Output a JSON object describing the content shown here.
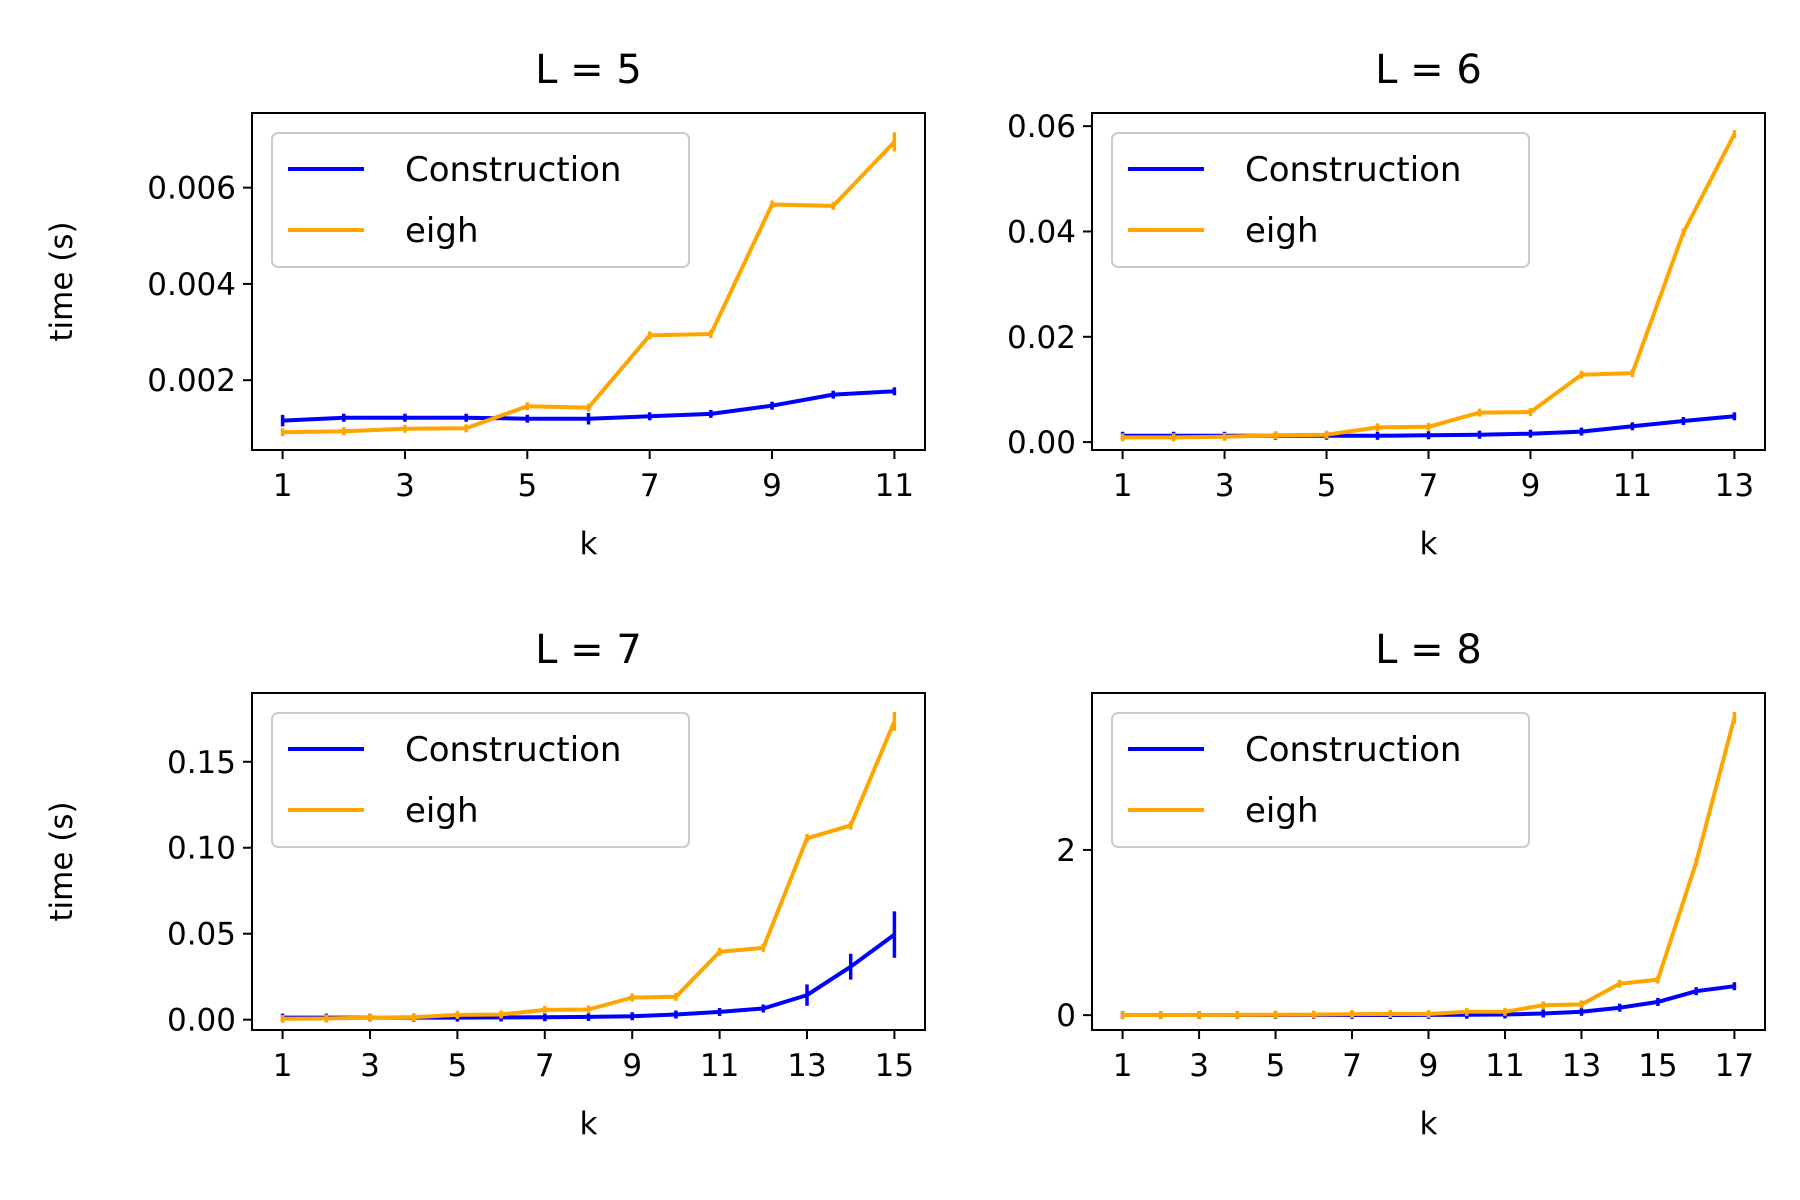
{
  "chart_data": [
    {
      "type": "line",
      "title": "L = 5",
      "xlabel": "k",
      "ylabel": "time (s)",
      "xlim": [
        0.5,
        11.5
      ],
      "ylim": [
        0.00055,
        0.00755
      ],
      "xticks": [
        1,
        3,
        5,
        7,
        9,
        11
      ],
      "yticks": [
        0.002,
        0.004,
        0.006
      ],
      "ytick_labels": [
        "0.002",
        "0.004",
        "0.006"
      ],
      "legend_position": "upper-left",
      "x": [
        1,
        2,
        3,
        4,
        5,
        6,
        7,
        8,
        9,
        10,
        11
      ],
      "series": [
        {
          "name": "Construction",
          "color": "#0000ff",
          "values": [
            0.00116,
            0.00122,
            0.00122,
            0.00122,
            0.0012,
            0.0012,
            0.00125,
            0.0013,
            0.00147,
            0.0017,
            0.00177
          ],
          "errors": [
            0.00012,
            8e-05,
            8e-05,
            8e-05,
            5e-05,
            0.00012,
            3e-05,
            6e-05,
            3e-05,
            4e-05,
            3e-05
          ]
        },
        {
          "name": "eigh",
          "color": "#ffa500",
          "values": [
            0.00092,
            0.00094,
            0.00099,
            0.001,
            0.00146,
            0.00143,
            0.00293,
            0.00296,
            0.00565,
            0.00562,
            0.00695
          ],
          "errors": [
            2e-05,
            2e-05,
            2e-05,
            2e-05,
            2e-05,
            2e-05,
            5e-05,
            3e-05,
            5e-05,
            5e-05,
            0.0002
          ]
        }
      ]
    },
    {
      "type": "line",
      "title": "L = 6",
      "xlabel": "k",
      "ylabel": "",
      "xlim": [
        0.4,
        13.6
      ],
      "ylim": [
        -0.0015,
        0.0625
      ],
      "xticks": [
        1,
        3,
        5,
        7,
        9,
        11,
        13
      ],
      "yticks": [
        0.0,
        0.02,
        0.04,
        0.06
      ],
      "ytick_labels": [
        "0.00",
        "0.02",
        "0.04",
        "0.06"
      ],
      "legend_position": "upper-left",
      "x": [
        1,
        2,
        3,
        4,
        5,
        6,
        7,
        8,
        9,
        10,
        11,
        12,
        13
      ],
      "series": [
        {
          "name": "Construction",
          "color": "#0000ff",
          "values": [
            0.0012,
            0.0012,
            0.0012,
            0.0012,
            0.0012,
            0.0012,
            0.0013,
            0.0014,
            0.0016,
            0.002,
            0.003,
            0.004,
            0.0049
          ],
          "errors": [
            0.0001,
            0.0001,
            0.0001,
            0.0001,
            0.0001,
            0.0001,
            0.0001,
            0.0001,
            0.0001,
            0.0001,
            0.0001,
            0.0001,
            0.0001
          ]
        },
        {
          "name": "eigh",
          "color": "#ffa500",
          "values": [
            0.0009,
            0.0009,
            0.001,
            0.0013,
            0.0014,
            0.0028,
            0.0029,
            0.0056,
            0.0057,
            0.0128,
            0.0131,
            0.0398,
            0.0585
          ],
          "errors": [
            0.0001,
            0.0001,
            0.0001,
            0.0001,
            0.0001,
            0.0001,
            0.0001,
            0.0001,
            0.0001,
            0.0002,
            0.0002,
            0.0006,
            0.0006
          ]
        }
      ]
    },
    {
      "type": "line",
      "title": "L = 7",
      "xlabel": "k",
      "ylabel": "time (s)",
      "xlim": [
        0.3,
        15.7
      ],
      "ylim": [
        -0.006,
        0.19
      ],
      "xticks": [
        1,
        3,
        5,
        7,
        9,
        11,
        13,
        15
      ],
      "yticks": [
        0.0,
        0.05,
        0.1,
        0.15
      ],
      "ytick_labels": [
        "0.00",
        "0.05",
        "0.10",
        "0.15"
      ],
      "legend_position": "upper-left",
      "x": [
        1,
        2,
        3,
        4,
        5,
        6,
        7,
        8,
        9,
        10,
        11,
        12,
        13,
        14,
        15
      ],
      "series": [
        {
          "name": "Construction",
          "color": "#0000ff",
          "values": [
            0.0012,
            0.0012,
            0.0012,
            0.0012,
            0.0012,
            0.0013,
            0.0014,
            0.0016,
            0.002,
            0.003,
            0.0045,
            0.0065,
            0.0143,
            0.0308,
            0.0495
          ],
          "errors": [
            0.0002,
            0.0002,
            0.0002,
            0.0002,
            0.0002,
            0.0002,
            0.0002,
            0.0002,
            0.0002,
            0.0003,
            0.0004,
            0.0005,
            0.0062,
            0.0075,
            0.0135
          ]
        },
        {
          "name": "eigh",
          "color": "#ffa500",
          "values": [
            0.0005,
            0.0007,
            0.0012,
            0.0015,
            0.0028,
            0.003,
            0.0057,
            0.0059,
            0.0129,
            0.0133,
            0.0395,
            0.0418,
            0.1055,
            0.113,
            0.1735
          ],
          "errors": [
            0.0002,
            0.0002,
            0.0002,
            0.0002,
            0.0002,
            0.0002,
            0.0003,
            0.0003,
            0.0005,
            0.0005,
            0.001,
            0.001,
            0.0025,
            0.0025,
            0.0055
          ]
        }
      ]
    },
    {
      "type": "line",
      "title": "L = 8",
      "xlabel": "k",
      "ylabel": "",
      "xlim": [
        0.2,
        17.8
      ],
      "ylim": [
        -0.18,
        3.9
      ],
      "xticks": [
        1,
        3,
        5,
        7,
        9,
        11,
        13,
        15,
        17
      ],
      "yticks": [
        0,
        2
      ],
      "ytick_labels": [
        "0",
        "2"
      ],
      "legend_position": "upper-left",
      "x": [
        1,
        2,
        3,
        4,
        5,
        6,
        7,
        8,
        9,
        10,
        11,
        12,
        13,
        14,
        15,
        16,
        17
      ],
      "series": [
        {
          "name": "Construction",
          "color": "#0000ff",
          "values": [
            0.001,
            0.001,
            0.001,
            0.001,
            0.001,
            0.001,
            0.002,
            0.002,
            0.003,
            0.005,
            0.008,
            0.02,
            0.04,
            0.09,
            0.16,
            0.29,
            0.35
          ],
          "errors": [
            0.001,
            0.001,
            0.001,
            0.001,
            0.001,
            0.001,
            0.001,
            0.001,
            0.001,
            0.001,
            0.002,
            0.003,
            0.004,
            0.006,
            0.01,
            0.03,
            0.03
          ]
        },
        {
          "name": "eigh",
          "color": "#ffa500",
          "values": [
            0.001,
            0.001,
            0.002,
            0.003,
            0.005,
            0.006,
            0.012,
            0.014,
            0.014,
            0.04,
            0.04,
            0.12,
            0.13,
            0.38,
            0.43,
            1.85,
            3.6
          ],
          "errors": [
            0.001,
            0.001,
            0.001,
            0.001,
            0.001,
            0.001,
            0.001,
            0.001,
            0.001,
            0.002,
            0.002,
            0.004,
            0.004,
            0.01,
            0.01,
            0.04,
            0.07
          ]
        }
      ]
    }
  ]
}
